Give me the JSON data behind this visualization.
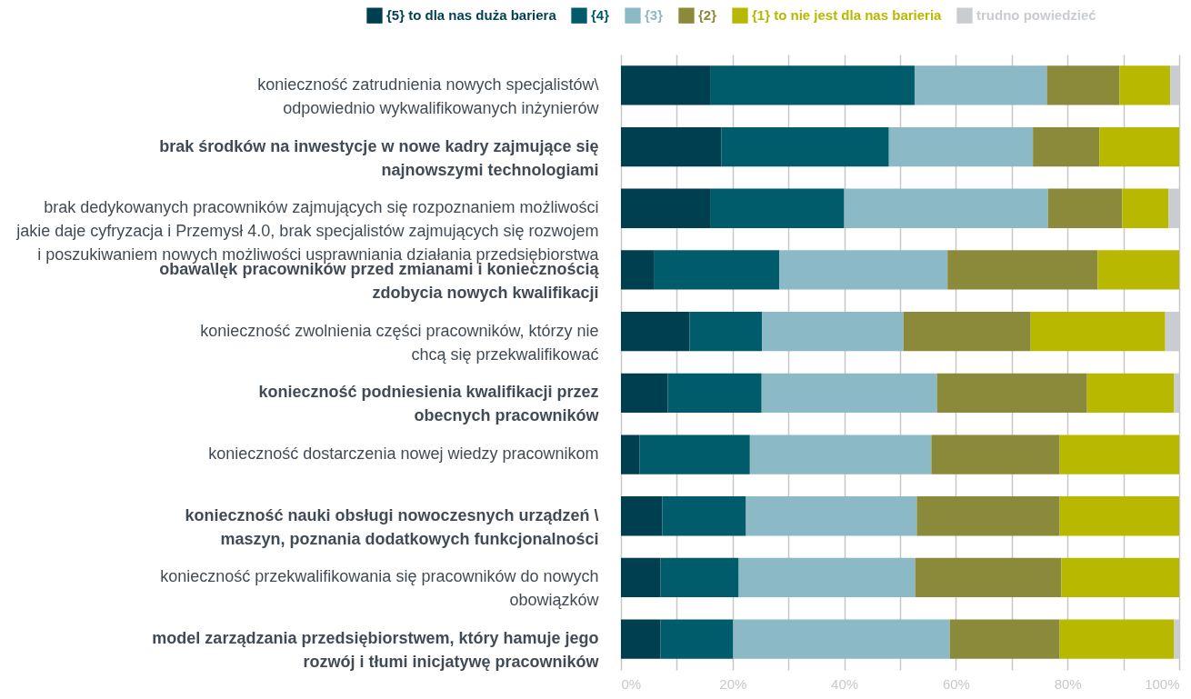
{
  "chart_data": {
    "type": "bar",
    "orientation": "horizontal",
    "stacked": true,
    "legend": "top",
    "grid": "x",
    "categories": [
      "konieczność zatrudnienia nowych specjalistów\\\nodpowiednio wykwalifikowanych inżynierów",
      "brak środków na inwestycje w nowe kadry zajmujące się\nnajnowszymi technologiami",
      "brak dedykowanych pracowników zajmujących się rozpoznaniem możliwości\njakie daje cyfryzacja i Przemysł 4.0, brak specjalistów zajmujących się rozwojem\ni poszukiwaniem nowych możliwości usprawniania działania przedsiębiorstwa",
      "obawa\\lęk pracowników przed zmianami i koniecznością\nzdobycia nowych kwalifikacji",
      "konieczność zwolnienia części pracowników, którzy nie\nchcą się przekwalifikować",
      "konieczność podniesienia kwalifikacji przez\nobecnych pracowników",
      "konieczność dostarczenia nowej wiedzy pracownikom",
      "konieczność nauki obsługi nowoczesnych urządzeń \\\nmaszyn, poznania dodatkowych funkcjonalności",
      "konieczność przekwalifikowania się pracowników do nowych\nobowiązków",
      "model zarządzania przedsiębiorstwem, który hamuje jego\nrozwój i tłumi inicjatywę pracowników"
    ],
    "series": [
      {
        "name": "{5} to dla nas duża bariera",
        "color": "#003f50",
        "values": [
          16.1,
          18,
          16.1,
          6,
          12.3,
          8.4,
          3.3,
          7.4,
          7.1,
          7.1
        ]
      },
      {
        "name": "{4}",
        "color": "#005b6a",
        "values": [
          36.5,
          30,
          23.9,
          22.4,
          13,
          16.8,
          19.8,
          15,
          14,
          13
        ]
      },
      {
        "name": "{3}",
        "color": "#8cb9c6",
        "values": [
          23.7,
          25.8,
          36.5,
          30.1,
          25.3,
          31.4,
          32.5,
          30.6,
          31.6,
          38.8
        ]
      },
      {
        "name": "{2}",
        "color": "#8a8a3a",
        "values": [
          13,
          11.9,
          13.3,
          26.9,
          22.8,
          26.9,
          23,
          25.6,
          26.2,
          19.7
        ]
      },
      {
        "name": "{1} to nie jest dla nas barieria",
        "color": "#b8b800",
        "values": [
          9.1,
          14.3,
          8.3,
          14.6,
          24.1,
          15.6,
          21.4,
          21.4,
          21.1,
          20.5
        ]
      },
      {
        "name": "trudno powiedzieć",
        "color": "#c9ccd0",
        "values": [
          1.6,
          null,
          1.9,
          null,
          2.5,
          0.9,
          null,
          null,
          null,
          0.9
        ]
      }
    ],
    "xlim": [
      0,
      100
    ],
    "xticks": [
      {
        "value": 0,
        "label": "0%"
      },
      {
        "value": 10,
        "label": null
      },
      {
        "value": 20,
        "label": "20%"
      },
      {
        "value": 30,
        "label": null
      },
      {
        "value": 40,
        "label": "40%"
      },
      {
        "value": 50,
        "label": null
      },
      {
        "value": 60,
        "label": "60%"
      },
      {
        "value": 70,
        "label": null
      },
      {
        "value": 80,
        "label": "80%"
      },
      {
        "value": 90,
        "label": null
      },
      {
        "value": 100,
        "label": "100%"
      }
    ]
  }
}
